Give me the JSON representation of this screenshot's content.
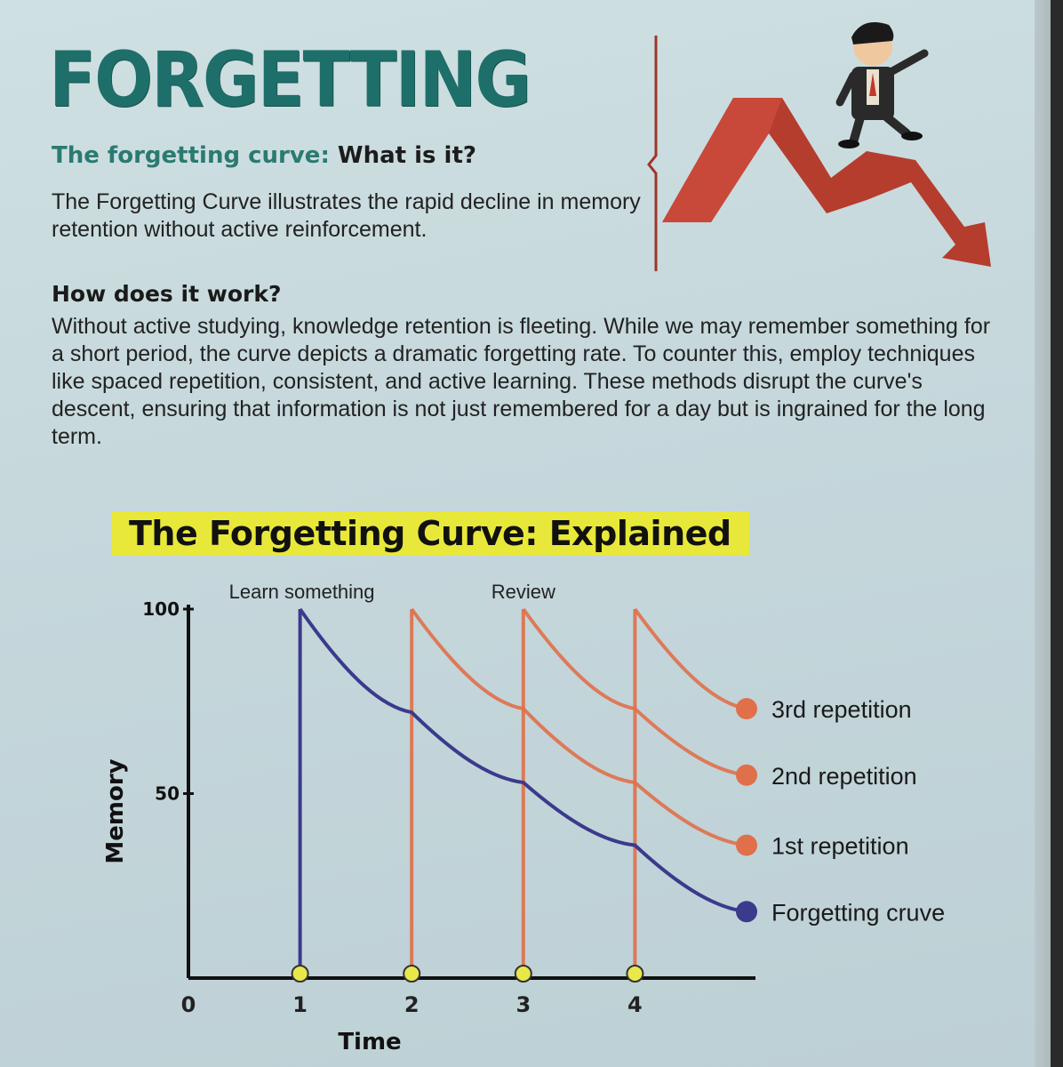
{
  "header": {
    "title": "FORGETTING",
    "subhead_teal": "The forgetting curve:",
    "subhead_dark": "What is it?",
    "intro": "The Forgetting Curve illustrates the rapid decline in memory retention without active reinforcement.",
    "how_heading": "How does it work?",
    "how_text": "Without active studying, knowledge retention is fleeting. While we may remember something for a short period, the curve depicts a dramatic forgetting rate. To counter this, employ techniques like spaced repetition, consistent, and active learning. These methods disrupt the curve's descent, ensuring that information is not just remembered for a day but is ingrained for the long term."
  },
  "chart_data": {
    "type": "line",
    "title": "The Forgetting Curve: Explained",
    "xlabel": "Time",
    "ylabel": "Memory",
    "xlim": [
      0,
      5
    ],
    "ylim": [
      0,
      100
    ],
    "x_ticks": [
      "0",
      "1",
      "2",
      "3",
      "4"
    ],
    "y_ticks": [
      "50",
      "100"
    ],
    "annotations": {
      "learn": "Learn something",
      "review": "Review"
    },
    "series": [
      {
        "name": "Forgetting cruve",
        "color": "#3b3a8c",
        "x": [
          1,
          2,
          3,
          4,
          5
        ],
        "y": [
          100,
          72,
          53,
          36,
          18
        ]
      },
      {
        "name": "1st repetition",
        "color": "#e0704a",
        "x": [
          2,
          3,
          4,
          5
        ],
        "y": [
          100,
          73,
          53,
          36
        ]
      },
      {
        "name": "2nd repetition",
        "color": "#e0704a",
        "x": [
          3,
          4,
          5
        ],
        "y": [
          100,
          73,
          55
        ]
      },
      {
        "name": "3rd repetition",
        "color": "#e0704a",
        "x": [
          4,
          5
        ],
        "y": [
          100,
          73
        ]
      }
    ]
  },
  "colors": {
    "teal": "#1e6f6a",
    "highlight": "#e8e83a",
    "review_marker": "#e8e84a",
    "arrow": "#b43d2e"
  },
  "illustration": {
    "icon": "man-on-zigzag-arrow-icon"
  }
}
